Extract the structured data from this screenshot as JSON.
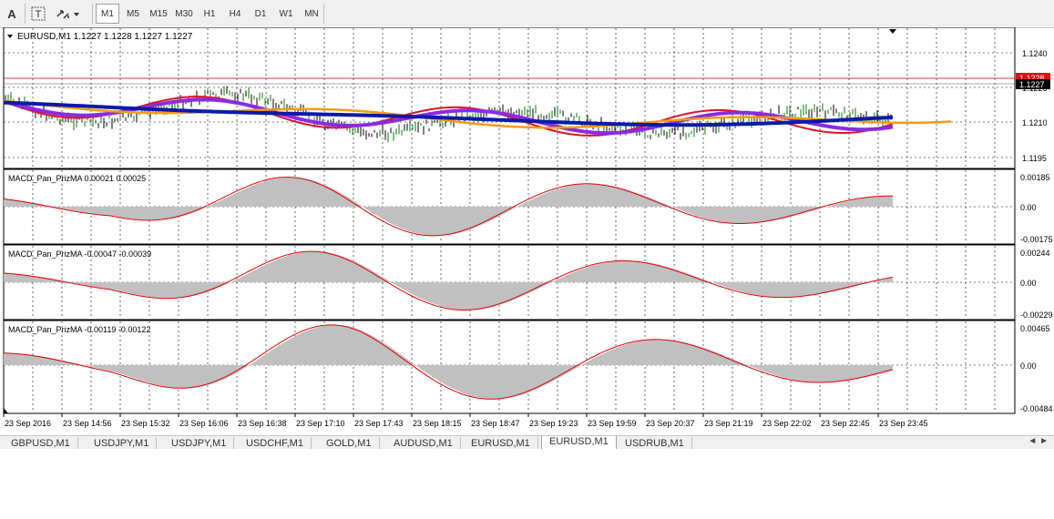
{
  "toolbar": {
    "font_button": "A",
    "timeframes": [
      {
        "label": "M1",
        "active": true
      },
      {
        "label": "M5",
        "active": false
      },
      {
        "label": "M15",
        "active": false
      },
      {
        "label": "M30",
        "active": false
      },
      {
        "label": "H1",
        "active": false
      },
      {
        "label": "H4",
        "active": false
      },
      {
        "label": "D1",
        "active": false
      },
      {
        "label": "W1",
        "active": false
      },
      {
        "label": "MN",
        "active": false
      }
    ]
  },
  "main_chart": {
    "title": "EURUSD,M1  1.1227 1.1228 1.1227 1.1227",
    "price_ticks": [
      "1.1240",
      "1.1225",
      "1.1210",
      "1.1195"
    ],
    "bid_label": "1.1227",
    "ask_label": "1.1228"
  },
  "indicators": [
    {
      "title": "MACD_Pan_PrizMA 0.00021 0.00025",
      "top": "0.00185",
      "mid": "0.00",
      "bottom": "-0.00175"
    },
    {
      "title": "MACD_Pan_PrizMA -0.00047 -0.00039",
      "top": "0.00244",
      "mid": "0.00",
      "bottom": "-0.00229"
    },
    {
      "title": "MACD_Pan_PrizMA -0.00119 -0.00122",
      "top": "0.00465",
      "mid": "0.00",
      "bottom": "-0.00484"
    }
  ],
  "time_axis": [
    "23 Sep 2016",
    "23 Sep 14:56",
    "23 Sep 15:32",
    "23 Sep 16:06",
    "23 Sep 16:38",
    "23 Sep 17:10",
    "23 Sep 17:43",
    "23 Sep 18:15",
    "23 Sep 18:47",
    "23 Sep 19:23",
    "23 Sep 19:59",
    "23 Sep 20:37",
    "23 Sep 21:19",
    "23 Sep 22:02",
    "23 Sep 22:45",
    "23 Sep 23:45"
  ],
  "tabs": [
    {
      "label": "GBPUSD,M1",
      "active": false
    },
    {
      "label": "USDJPY,M1",
      "active": false
    },
    {
      "label": "USDJPY,M1",
      "active": false
    },
    {
      "label": "USDCHF,M1",
      "active": false
    },
    {
      "label": "GOLD,M1",
      "active": false
    },
    {
      "label": "AUDUSD,M1",
      "active": false
    },
    {
      "label": "EURUSD,M1",
      "active": false
    },
    {
      "label": "EURUSD,M1",
      "active": true
    },
    {
      "label": "USDRUB,M1",
      "active": false
    }
  ],
  "tab_scroll": "◄ ►",
  "colors": {
    "grid": "#000000",
    "signal": "#e00000",
    "histogram": "#c0c0c0",
    "ma_blue": "#0a1aa8",
    "ma_purple": "#8a2be2",
    "ma_orange": "#f39c12",
    "ma_red": "#e0102a",
    "bars": "#0a7a0a"
  }
}
